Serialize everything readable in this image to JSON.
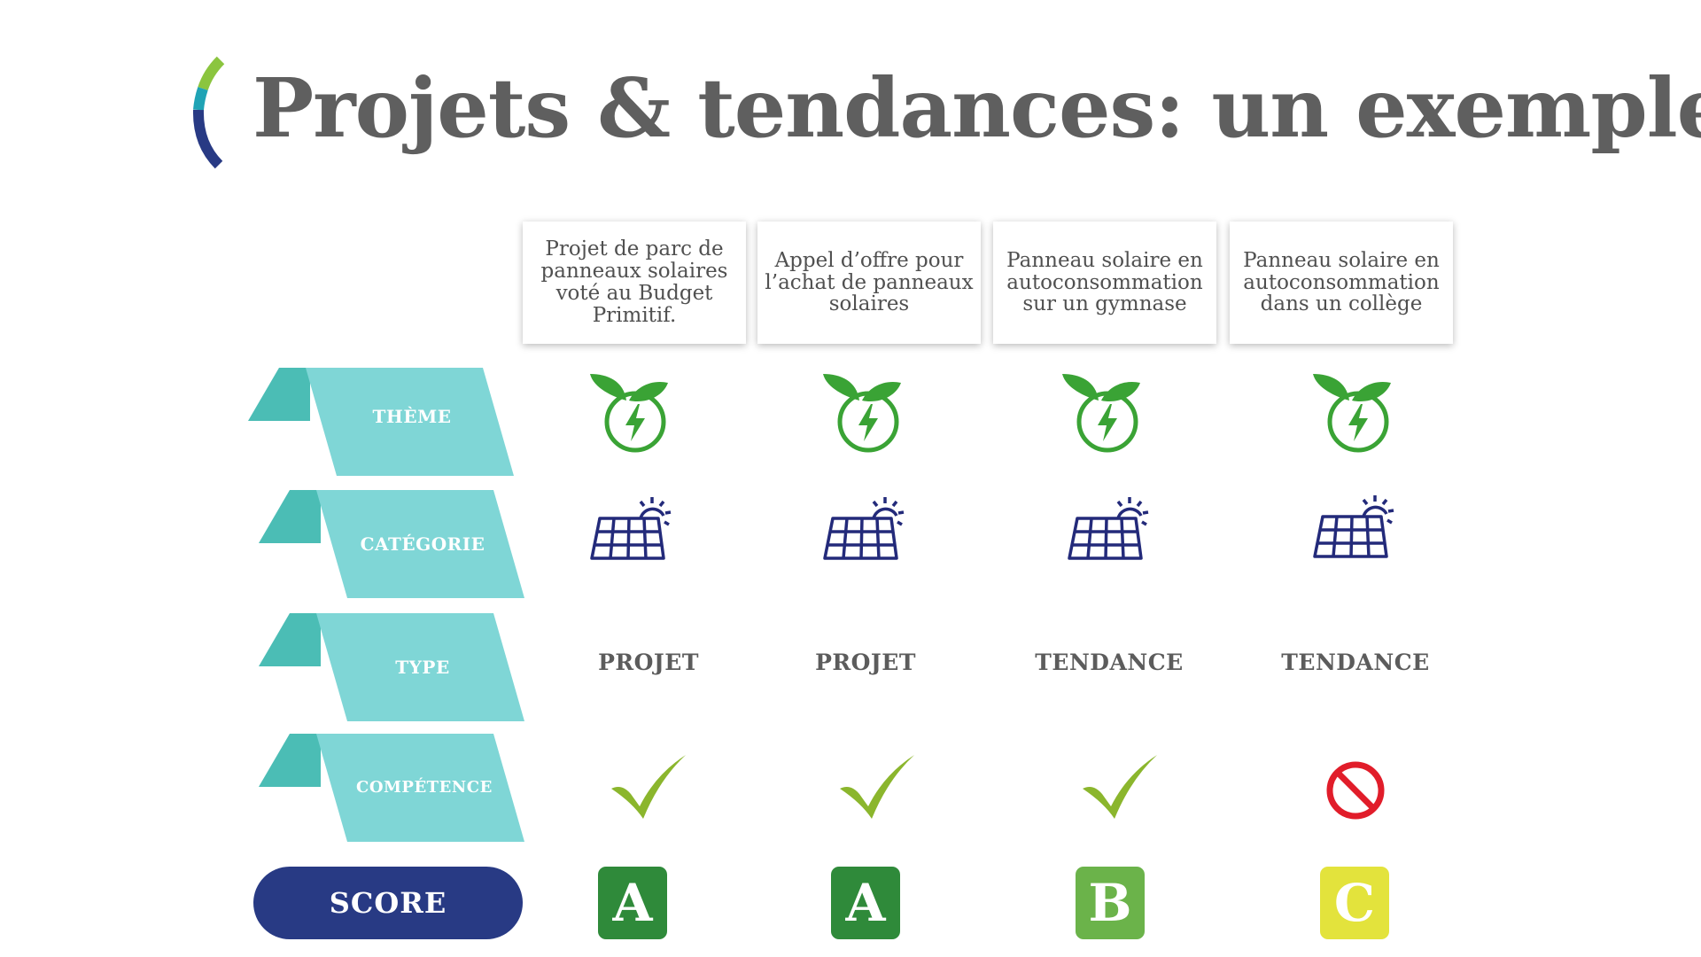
{
  "title": "Projets & tendances: un exemple.",
  "columns": [
    {
      "label": "Projet de parc de panneaux solaires voté au Budget Primitif."
    },
    {
      "label": "Appel d’offre pour l’achat de panneaux solaires"
    },
    {
      "label": "Panneau solaire en autoconsommation sur un gymnase"
    },
    {
      "label": "Panneau solaire en autoconsommation dans un collège"
    }
  ],
  "rows": {
    "theme": {
      "label": "THÈME",
      "icon": "eco-energy-icon"
    },
    "categorie": {
      "label": "CATÉGORIE",
      "icon": "solar-panel-icon"
    },
    "type": {
      "label": "TYPE",
      "values": [
        "PROJET",
        "PROJET",
        "TENDANCE",
        "TENDANCE"
      ]
    },
    "competence": {
      "label": "COMPÉTENCE",
      "values": [
        "check-icon",
        "check-icon",
        "check-icon",
        "prohibited-icon"
      ]
    },
    "score": {
      "label": "SCORE",
      "values": [
        "A",
        "A",
        "B",
        "C"
      ]
    }
  },
  "colors": {
    "title": "#5f5f5f",
    "ribbon_light": "#7fd6d6",
    "ribbon_dark": "#4bbdb5",
    "score_pill": "#283a84",
    "leaf_green": "#3aa335",
    "solar_navy": "#232a7a",
    "check_green": "#8bb62d",
    "prohibited_red": "#e11d2a",
    "score_A": "#2f8a3a",
    "score_B": "#6bb34a",
    "score_C": "#e3e33c"
  }
}
